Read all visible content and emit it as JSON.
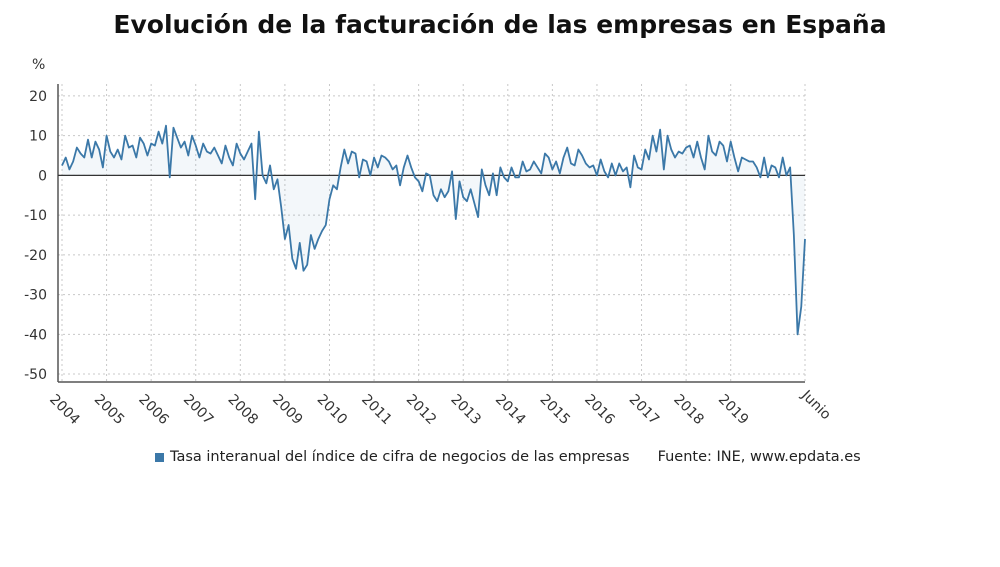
{
  "chart_data": {
    "type": "line",
    "title": "Evolución de la facturación de las empresas en España",
    "ylabel": "%",
    "ylim": [
      -52,
      23
    ],
    "yticks": [
      20,
      10,
      0,
      -10,
      -20,
      -30,
      -40,
      -50
    ],
    "year_labels": [
      "2004",
      "2005",
      "2006",
      "2007",
      "2008",
      "2009",
      "2010",
      "2011",
      "2012",
      "2013",
      "2014",
      "2015",
      "2016",
      "2017",
      "2018",
      "2019"
    ],
    "end_label": "Junio",
    "grid": true,
    "legend_position": "bottom",
    "series": [
      {
        "name": "Tasa interanual del índice de cifra de negocios de las empresas",
        "color": "#3b78a8",
        "x_start": "2004-01",
        "x_end": "2020-06",
        "values": [
          2.5,
          4.5,
          1.5,
          3.5,
          7.0,
          5.5,
          4.5,
          9.0,
          4.5,
          8.5,
          6.5,
          2.0,
          10.0,
          6.0,
          4.5,
          6.5,
          4.0,
          10.0,
          7.0,
          7.5,
          4.5,
          9.5,
          8.0,
          5.0,
          8.0,
          7.5,
          11.0,
          8.0,
          12.5,
          -0.5,
          12.0,
          9.5,
          7.0,
          8.5,
          5.0,
          10.0,
          7.5,
          4.5,
          8.0,
          6.0,
          5.5,
          7.0,
          5.0,
          3.0,
          7.5,
          4.5,
          2.5,
          8.0,
          5.5,
          4.0,
          6.0,
          8.0,
          -6.0,
          11.0,
          0.0,
          -2.0,
          2.5,
          -3.5,
          -1.0,
          -8.0,
          -16.0,
          -12.5,
          -21.0,
          -23.5,
          -17.0,
          -24.0,
          -22.5,
          -15.0,
          -18.5,
          -16.0,
          -14.0,
          -12.5,
          -6.0,
          -2.5,
          -3.5,
          2.0,
          6.5,
          3.0,
          6.0,
          5.5,
          -0.5,
          4.0,
          3.5,
          0.0,
          4.5,
          2.0,
          5.0,
          4.5,
          3.5,
          1.5,
          2.5,
          -2.5,
          2.0,
          5.0,
          2.0,
          -0.5,
          -1.5,
          -4.0,
          0.5,
          0.0,
          -5.0,
          -6.5,
          -3.5,
          -5.5,
          -4.0,
          1.0,
          -11.0,
          -1.5,
          -5.5,
          -6.5,
          -3.5,
          -7.0,
          -10.5,
          1.5,
          -2.5,
          -5.0,
          0.5,
          -5.0,
          2.0,
          -0.5,
          -1.5,
          2.0,
          -0.5,
          -0.5,
          3.5,
          1.0,
          1.5,
          3.5,
          2.0,
          0.5,
          5.5,
          4.5,
          1.5,
          3.5,
          0.5,
          4.5,
          7.0,
          3.0,
          2.5,
          6.5,
          5.0,
          3.0,
          2.0,
          2.5,
          0.0,
          4.0,
          1.0,
          -0.5,
          3.0,
          0.0,
          3.0,
          1.0,
          2.0,
          -3.0,
          5.0,
          2.0,
          1.5,
          6.5,
          4.0,
          10.0,
          6.0,
          11.5,
          1.5,
          10.0,
          6.5,
          4.5,
          6.0,
          5.5,
          7.0,
          7.5,
          4.5,
          8.5,
          4.5,
          1.5,
          10.0,
          6.0,
          5.0,
          8.5,
          7.5,
          3.5,
          8.5,
          4.5,
          1.0,
          4.5,
          4.0,
          3.5,
          3.5,
          2.0,
          -0.5,
          4.5,
          -0.5,
          2.5,
          2.0,
          -0.5,
          4.5,
          0.0,
          2.0,
          -15.0,
          -40.0,
          -33.0,
          -16.0
        ]
      }
    ],
    "zero_line": true
  },
  "legend": {
    "series_label": "Tasa interanual del índice de cifra de negocios de las empresas",
    "source": "Fuente: INE, www.epdata.es"
  }
}
